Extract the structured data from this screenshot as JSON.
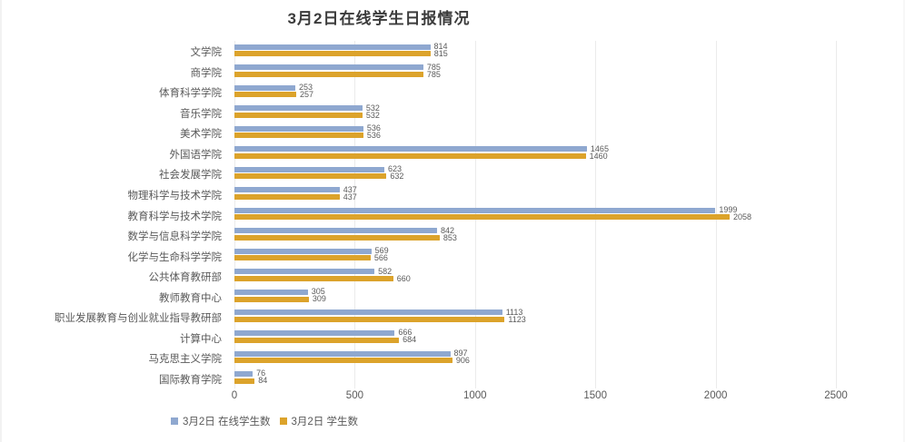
{
  "chart_data": {
    "type": "bar",
    "orientation": "horizontal",
    "title": "3月2日在线学生日报情况",
    "categories": [
      "文学院",
      "商学院",
      "体育科学学院",
      "音乐学院",
      "美术学院",
      "外国语学院",
      "社会发展学院",
      "物理科学与技术学院",
      "教育科学与技术学院",
      "数学与信息科学学院",
      "化学与生命科学学院",
      "公共体育教研部",
      "教师教育中心",
      "职业发展教育与创业就业指导教研部",
      "计算中心",
      "马克思主义学院",
      "国际教育学院"
    ],
    "series": [
      {
        "name": "3月2日 在线学生数",
        "color": "#8fa8d0",
        "values": [
          814,
          785,
          253,
          532,
          536,
          1465,
          623,
          437,
          1999,
          842,
          569,
          582,
          305,
          1113,
          666,
          897,
          76
        ]
      },
      {
        "name": "3月2日 学生数",
        "color": "#dca32b",
        "values": [
          815,
          785,
          257,
          532,
          536,
          1460,
          632,
          437,
          2058,
          853,
          566,
          660,
          309,
          1123,
          684,
          906,
          84
        ]
      }
    ],
    "xlim": [
      0,
      2500
    ],
    "x_ticks": [
      "0",
      "500",
      "1000",
      "1500",
      "2000",
      "2500"
    ],
    "grid": true,
    "legend_position": "bottom-left",
    "text_color": "#595959",
    "grid_color": "#ebebeb"
  }
}
